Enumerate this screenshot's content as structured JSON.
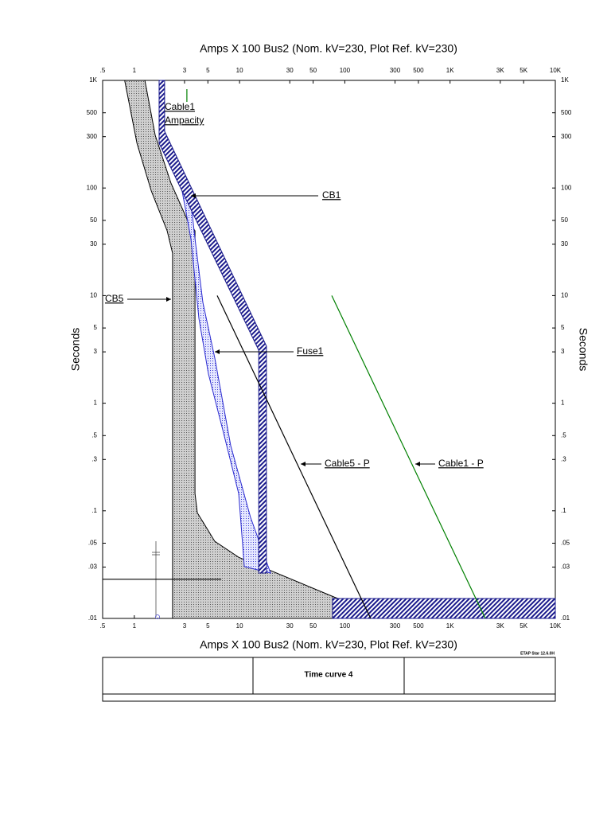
{
  "chart_data": {
    "type": "tcc",
    "xlabel": "Amps  X  100   Bus2 (Nom. kV=230, Plot Ref. kV=230)",
    "ylabel": "Seconds",
    "log_x": true,
    "log_y": true,
    "grid": false,
    "xlim": [
      0.5,
      10000
    ],
    "ylim": [
      0.01,
      1000
    ],
    "xticks": [
      {
        "value": 0.5,
        "label": ".5"
      },
      1,
      3,
      5,
      10,
      30,
      50,
      100,
      300,
      500,
      {
        "value": 1000,
        "label": "1K"
      },
      {
        "value": 3000,
        "label": "3K"
      },
      {
        "value": 5000,
        "label": "5K"
      },
      {
        "value": 10000,
        "label": "10K"
      }
    ],
    "yticks": [
      {
        "value": 0.01,
        "label": ".01"
      },
      {
        "value": 0.03,
        "label": ".03"
      },
      {
        "value": 0.05,
        "label": ".05"
      },
      {
        "value": 0.1,
        "label": ".1"
      },
      {
        "value": 0.3,
        "label": ".3"
      },
      {
        "value": 0.5,
        "label": ".5"
      },
      1,
      3,
      5,
      10,
      30,
      50,
      100,
      300,
      500,
      {
        "value": 1000,
        "label": "1K"
      }
    ],
    "series": [
      {
        "kind": "band",
        "fill": "dots-gray",
        "color": "#000000",
        "x": [
          0.81,
          1.06,
          1.45,
          2.05,
          2.31,
          2.31,
          268,
          79,
          9.8,
          5.82,
          3.97,
          3.77,
          3.77,
          3.16,
          2.23,
          1.58,
          1.26
        ],
        "values": [
          1000,
          260,
          93.8,
          40,
          24.8,
          0.01,
          0.01,
          0.0158,
          0.037,
          0.052,
          0.096,
          0.145,
          40,
          51.6,
          111,
          309,
          1000
        ]
      },
      {
        "kind": "band",
        "fill": "dots-blue",
        "color": "#2a2ad0",
        "x": [
          2.8,
          3.45,
          4.11,
          5.06,
          6.92,
          9.8,
          11.1,
          19.7,
          12.7,
          8.24,
          5.82,
          4.48,
          3.77,
          3.33
        ],
        "values": [
          102,
          33.7,
          6.15,
          1.87,
          0.566,
          0.145,
          0.0303,
          0.0264,
          0.087,
          0.403,
          2.62,
          8.64,
          33.7,
          102
        ]
      },
      {
        "kind": "band",
        "fill": "hatch",
        "color": "#1a1a8c",
        "x": [
          1.72,
          1.72,
          15.2,
          15.2,
          18.0,
          18.0,
          1.94,
          1.94
        ],
        "values": [
          1000,
          260,
          3.11,
          0.0264,
          0.0264,
          3.39,
          336,
          1000
        ]
      },
      {
        "kind": "band",
        "fill": "hatch",
        "color": "#1a1a8c",
        "x": [
          76.5,
          10000,
          10000,
          76.5
        ],
        "values": [
          0.0153,
          0.0153,
          0.01,
          0.01
        ]
      },
      {
        "kind": "line",
        "color": "#000000",
        "x": [
          6.13,
          176
        ],
        "values": [
          10,
          0.01
        ]
      },
      {
        "kind": "line",
        "color": "#008000",
        "x": [
          75.2,
          2162
        ],
        "values": [
          10,
          0.01
        ]
      },
      {
        "kind": "line",
        "color": "#008000",
        "x": [
          3.16,
          3.16
        ],
        "values": [
          829,
          631
        ]
      },
      {
        "kind": "line",
        "color": "#000000",
        "x": [
          0.5,
          6.7
        ],
        "values": [
          0.0231,
          0.0231
        ]
      }
    ],
    "annotations": [
      "CB1",
      "CB5",
      "Fuse1",
      "Cable5 - P",
      "Cable1 - P",
      "Cable1",
      "Ampacity"
    ]
  },
  "footer": {
    "title": "Time curve 4",
    "version": "ETAP Star 12.6.0H"
  }
}
